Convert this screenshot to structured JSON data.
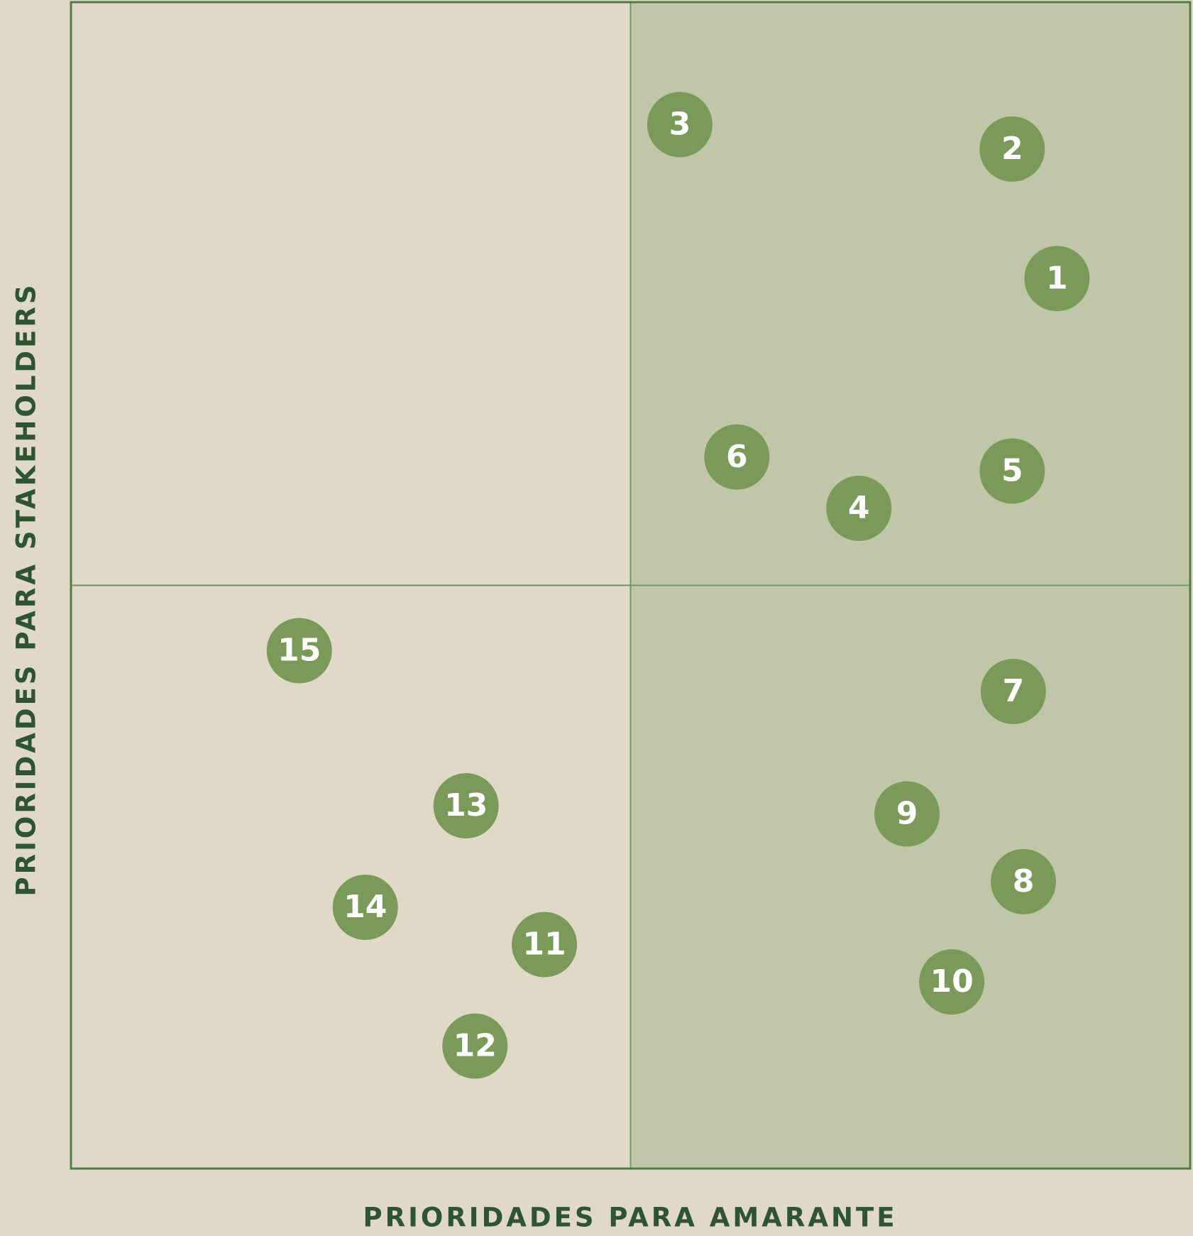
{
  "chart_data": {
    "type": "scatter",
    "xlabel": "PRIORIDADES PARA AMARANTE",
    "ylabel": "PRIORIDADES PARA STAKEHOLDERS",
    "labels": [
      "1",
      "2",
      "3",
      "4",
      "5",
      "6",
      "7",
      "8",
      "9",
      "10",
      "11",
      "12",
      "13",
      "14",
      "15"
    ],
    "x": [
      88.1,
      84.1,
      54.4,
      70.4,
      84.1,
      59.5,
      84.2,
      85.1,
      74.7,
      78.7,
      42.3,
      36.1,
      35.3,
      26.3,
      20.4
    ],
    "values": [
      76.3,
      87.4,
      89.5,
      56.6,
      59.8,
      61.0,
      40.9,
      24.6,
      30.4,
      16.0,
      19.2,
      10.5,
      31.1,
      22.4,
      44.4
    ],
    "color": "#7a9a5a",
    "xlim": [
      0,
      100
    ],
    "ylim": [
      0,
      100
    ]
  }
}
